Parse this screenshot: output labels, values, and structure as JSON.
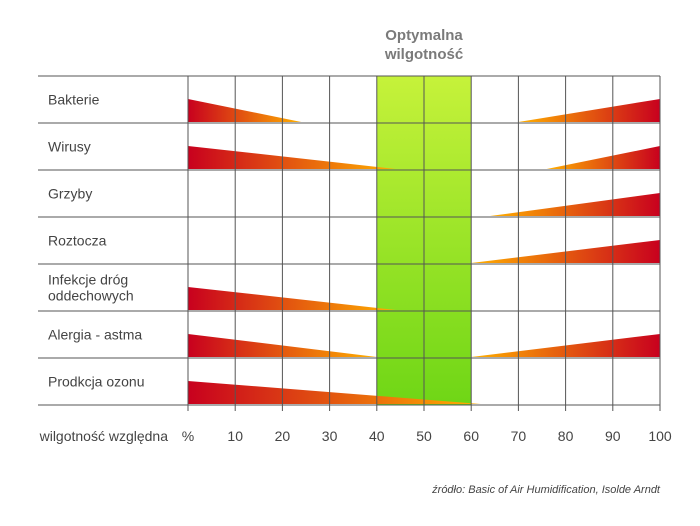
{
  "chart_data": {
    "type": "bar",
    "title": "",
    "x_axis_label": "wilgotność względna",
    "x_ticks": [
      "%",
      "10",
      "20",
      "30",
      "40",
      "50",
      "60",
      "70",
      "80",
      "90",
      "100"
    ],
    "xlim": [
      0,
      100
    ],
    "optimal_zone": {
      "label_line1": "Optymalna",
      "label_line2": "wilgotność",
      "range": [
        40,
        60
      ]
    },
    "rows": [
      {
        "label_lines": [
          "Bakterie"
        ],
        "low_range": [
          0,
          24
        ],
        "high_range": [
          70,
          100
        ]
      },
      {
        "label_lines": [
          "Wirusy"
        ],
        "low_range": [
          0,
          44
        ],
        "high_range": [
          76,
          100
        ]
      },
      {
        "label_lines": [
          "Grzyby"
        ],
        "low_range": null,
        "high_range": [
          64,
          100
        ]
      },
      {
        "label_lines": [
          "Roztocza"
        ],
        "low_range": null,
        "high_range": [
          60,
          100
        ]
      },
      {
        "label_lines": [
          "Infekcje dróg",
          "oddechowych"
        ],
        "low_range": [
          0,
          44
        ],
        "high_range": null
      },
      {
        "label_lines": [
          "Alergia - astma"
        ],
        "low_range": [
          0,
          40
        ],
        "high_range": [
          60,
          100
        ]
      },
      {
        "label_lines": [
          "Prodkcja ozonu"
        ],
        "low_range": [
          0,
          62
        ],
        "high_range": null
      }
    ],
    "grid": true,
    "colors": {
      "risk_high": "#c8001e",
      "risk_low": "#ffb000",
      "optimal_top": "#c6f23a",
      "optimal_bottom": "#6fd616",
      "grid": "#555555"
    }
  },
  "source_note": "źródło: Basic of Air Humidification, Isolde Arndt"
}
